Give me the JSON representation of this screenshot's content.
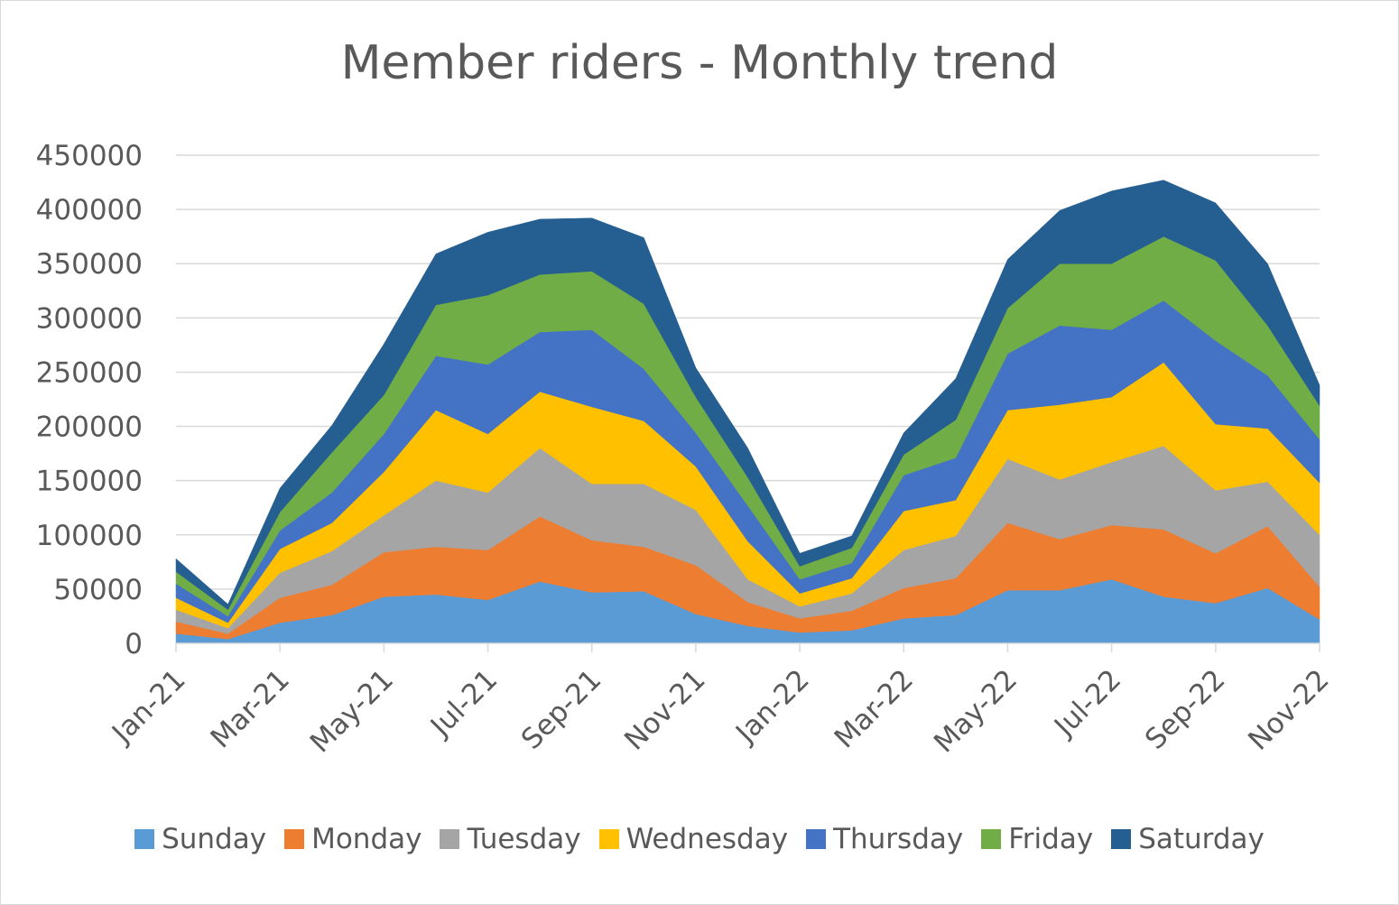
{
  "chart_data": {
    "type": "area",
    "stacked": true,
    "title": "Member riders - Monthly trend",
    "xlabel": "",
    "ylabel": "",
    "ylim": [
      0,
      450000
    ],
    "yticks": [
      0,
      50000,
      100000,
      150000,
      200000,
      250000,
      300000,
      350000,
      400000,
      450000
    ],
    "grid": true,
    "legend_position": "bottom",
    "categories": [
      "Jan-21",
      "Feb-21",
      "Mar-21",
      "Apr-21",
      "May-21",
      "Jun-21",
      "Jul-21",
      "Aug-21",
      "Sep-21",
      "Oct-21",
      "Nov-21",
      "Dec-21",
      "Jan-22",
      "Feb-22",
      "Mar-22",
      "Apr-22",
      "May-22",
      "Jun-22",
      "Jul-22",
      "Aug-22",
      "Sep-22",
      "Oct-22",
      "Nov-22"
    ],
    "x_tick_labels": [
      "Jan-21",
      "Mar-21",
      "May-21",
      "Jul-21",
      "Sep-21",
      "Nov-21",
      "Jan-22",
      "Mar-22",
      "May-22",
      "Jul-22",
      "Sep-22",
      "Nov-22"
    ],
    "series": [
      {
        "name": "Sunday",
        "color": "#5b9bd5",
        "values": [
          9000,
          4000,
          19000,
          26000,
          43000,
          45000,
          40000,
          57000,
          47000,
          48000,
          27000,
          16000,
          10000,
          12000,
          23000,
          26000,
          49000,
          49000,
          59000,
          43000,
          37000,
          51000,
          22000
        ]
      },
      {
        "name": "Monday",
        "color": "#ed7d31",
        "values": [
          11000,
          5000,
          23000,
          28000,
          41000,
          44000,
          46000,
          60000,
          48000,
          41000,
          45000,
          22000,
          13000,
          18000,
          28000,
          34000,
          62000,
          47000,
          50000,
          62000,
          46000,
          57000,
          30000
        ]
      },
      {
        "name": "Tuesday",
        "color": "#a5a5a5",
        "values": [
          11000,
          5000,
          23000,
          31000,
          34000,
          61000,
          53000,
          63000,
          52000,
          58000,
          51000,
          21000,
          11000,
          16000,
          35000,
          39000,
          59000,
          55000,
          58000,
          77000,
          58000,
          41000,
          48000
        ]
      },
      {
        "name": "Wednesday",
        "color": "#ffc000",
        "values": [
          11000,
          5000,
          22000,
          26000,
          40000,
          65000,
          54000,
          52000,
          71000,
          58000,
          40000,
          35000,
          12000,
          14000,
          36000,
          33000,
          45000,
          69000,
          60000,
          77000,
          61000,
          49000,
          48000
        ]
      },
      {
        "name": "Thursday",
        "color": "#4472c4",
        "values": [
          13000,
          6000,
          17000,
          28000,
          35000,
          50000,
          64000,
          55000,
          71000,
          48000,
          31000,
          33000,
          13000,
          14000,
          33000,
          39000,
          52000,
          73000,
          62000,
          57000,
          77000,
          49000,
          40000
        ]
      },
      {
        "name": "Friday",
        "color": "#70ad47",
        "values": [
          11000,
          6000,
          17000,
          37000,
          36000,
          47000,
          64000,
          53000,
          54000,
          60000,
          33000,
          26000,
          12000,
          14000,
          19000,
          35000,
          42000,
          57000,
          61000,
          59000,
          74000,
          46000,
          31000
        ]
      },
      {
        "name": "Saturday",
        "color": "#255e91",
        "values": [
          12000,
          5000,
          22000,
          25000,
          47000,
          47000,
          58000,
          51000,
          49000,
          61000,
          27000,
          27000,
          12000,
          11000,
          20000,
          38000,
          45000,
          49000,
          67000,
          52000,
          53000,
          57000,
          19000
        ]
      }
    ]
  }
}
